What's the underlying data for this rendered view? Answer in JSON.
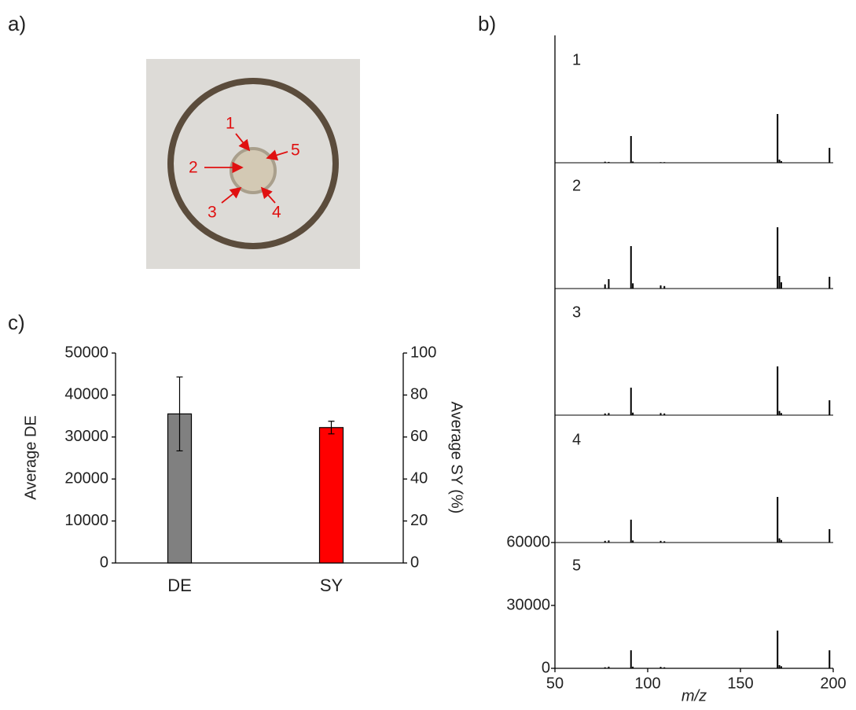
{
  "panels": [
    "a)",
    "b)",
    "c)"
  ],
  "photo": {
    "spot_labels": [
      "1",
      "2",
      "3",
      "4",
      "5"
    ]
  },
  "chart_data": [
    {
      "type": "bar",
      "categories": [
        "DE",
        "SY"
      ],
      "ylabel": "Average  DE",
      "y2label": "Average  SY (%)",
      "ylim": [
        0,
        50000
      ],
      "yticks": [
        0,
        10000,
        20000,
        30000,
        40000,
        50000
      ],
      "y2lim": [
        0,
        100
      ],
      "y2ticks": [
        0,
        20,
        40,
        60,
        80,
        100
      ],
      "series": [
        {
          "color": "#808080",
          "values": [
            35500,
            null
          ],
          "errors": [
            8800,
            null
          ]
        },
        {
          "color": "#ff0000",
          "values": [
            null,
            64.5
          ],
          "errors": [
            null,
            3
          ],
          "axis": "y2"
        }
      ]
    },
    {
      "type": "stem",
      "xlabel": "m/z",
      "xlim": [
        50,
        200
      ],
      "xticks": [
        50,
        100,
        150,
        200
      ],
      "ylim": [
        0,
        60000
      ],
      "yticks": [
        0,
        30000,
        60000
      ],
      "x": [
        77,
        79,
        91,
        92,
        107,
        109,
        170,
        171,
        172,
        198
      ],
      "series": [
        {
          "name": "1",
          "color": "#000000",
          "values": [
            500,
            400,
            12750,
            600,
            300,
            300,
            23250,
            1500,
            800,
            7100
          ]
        },
        {
          "name": "2",
          "color": "#000000",
          "values": [
            2000,
            4500,
            20250,
            2500,
            1500,
            1200,
            29250,
            6000,
            3000,
            5600
          ]
        },
        {
          "name": "3",
          "color": "#000000",
          "values": [
            800,
            1000,
            13100,
            1200,
            1000,
            800,
            23250,
            2000,
            1000,
            7100
          ]
        },
        {
          "name": "4",
          "color": "#000000",
          "values": [
            800,
            1000,
            10900,
            1000,
            800,
            600,
            21750,
            2000,
            1200,
            6400
          ]
        },
        {
          "name": "5",
          "color": "#000000",
          "values": [
            500,
            800,
            8600,
            800,
            700,
            500,
            18000,
            1500,
            1000,
            8600
          ]
        }
      ]
    }
  ]
}
